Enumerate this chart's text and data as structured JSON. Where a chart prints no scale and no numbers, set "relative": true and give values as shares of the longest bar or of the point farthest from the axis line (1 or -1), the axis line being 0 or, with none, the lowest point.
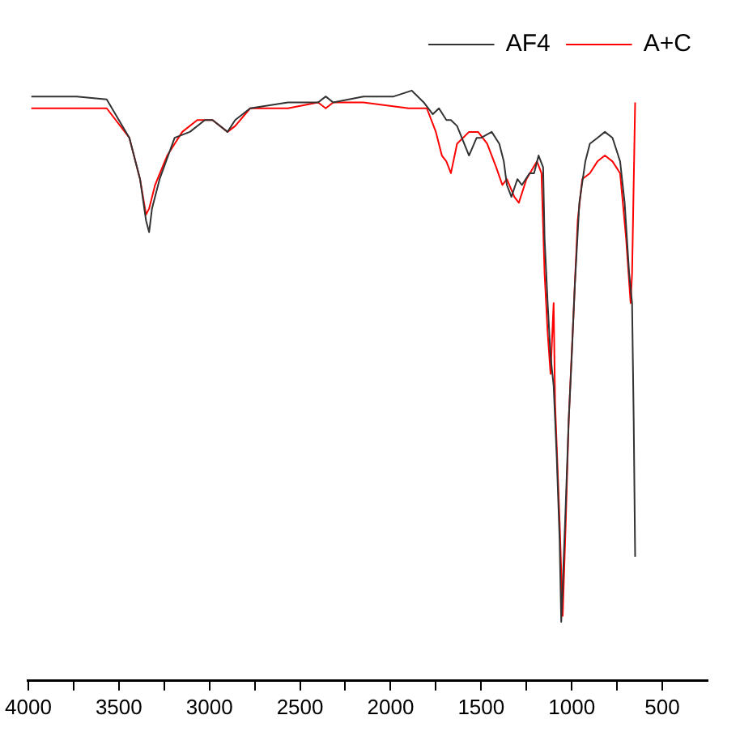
{
  "chart_data": {
    "type": "line",
    "relative": true,
    "legend": "top right",
    "grid": false,
    "marker": "none",
    "line_style": "solid",
    "xlim": [
      4000,
      250
    ],
    "xticks": [
      4000,
      {
        "value": 3750,
        "label": null
      },
      3500,
      {
        "value": 3250,
        "label": null
      },
      3000,
      {
        "value": 2750,
        "label": null
      },
      2500,
      {
        "value": 2250,
        "label": null
      },
      2000,
      {
        "value": 1750,
        "label": null
      },
      1500,
      {
        "value": 1250,
        "label": null
      },
      1000,
      {
        "value": 750,
        "label": null
      },
      500
    ],
    "series": [
      {
        "name": "AF4",
        "color": "#333333",
        "x": [
          3983,
          3733,
          3567,
          3442,
          3383,
          3350,
          3333,
          3317,
          3275,
          3192,
          3108,
          3025,
          2983,
          2900,
          2858,
          2775,
          2567,
          2400,
          2358,
          2317,
          2150,
          1983,
          1883,
          1817,
          1767,
          1733,
          1692,
          1667,
          1633,
          1567,
          1525,
          1500,
          1442,
          1400,
          1375,
          1358,
          1333,
          1300,
          1275,
          1233,
          1208,
          1183,
          1158,
          1150,
          1133,
          1117,
          1100,
          1083,
          1067,
          1058,
          1050,
          1033,
          1017,
          1000,
          983,
          958,
          925,
          900,
          858,
          817,
          775,
          733,
          708,
          683,
          667,
          658,
          650
        ],
        "values": [
          0.99,
          0.99,
          0.985,
          0.92,
          0.85,
          0.78,
          0.76,
          0.8,
          0.85,
          0.92,
          0.93,
          0.95,
          0.95,
          0.93,
          0.95,
          0.97,
          0.98,
          0.98,
          0.99,
          0.98,
          0.99,
          0.99,
          1.0,
          0.98,
          0.96,
          0.97,
          0.95,
          0.95,
          0.94,
          0.89,
          0.92,
          0.92,
          0.93,
          0.91,
          0.88,
          0.84,
          0.82,
          0.85,
          0.84,
          0.86,
          0.86,
          0.89,
          0.87,
          0.75,
          0.64,
          0.55,
          0.5,
          0.38,
          0.24,
          0.1,
          0.16,
          0.3,
          0.44,
          0.55,
          0.67,
          0.81,
          0.88,
          0.91,
          0.92,
          0.93,
          0.92,
          0.88,
          0.81,
          0.69,
          0.64,
          0.44,
          0.21
        ]
      },
      {
        "name": "A+C",
        "color": "#ff0000",
        "x": [
          3983,
          3733,
          3567,
          3442,
          3383,
          3350,
          3333,
          3300,
          3233,
          3150,
          3067,
          2983,
          2900,
          2858,
          2775,
          2567,
          2400,
          2358,
          2317,
          2150,
          1900,
          1800,
          1750,
          1717,
          1692,
          1667,
          1633,
          1567,
          1517,
          1467,
          1417,
          1383,
          1358,
          1317,
          1292,
          1250,
          1192,
          1167,
          1150,
          1133,
          1117,
          1100,
          1092,
          1067,
          1050,
          1033,
          1017,
          992,
          967,
          942,
          900,
          858,
          817,
          775,
          733,
          700,
          675,
          667,
          650
        ],
        "values": [
          0.97,
          0.97,
          0.97,
          0.92,
          0.85,
          0.79,
          0.8,
          0.84,
          0.89,
          0.93,
          0.95,
          0.95,
          0.93,
          0.94,
          0.97,
          0.97,
          0.98,
          0.97,
          0.98,
          0.98,
          0.97,
          0.97,
          0.93,
          0.89,
          0.88,
          0.86,
          0.91,
          0.93,
          0.93,
          0.91,
          0.87,
          0.84,
          0.85,
          0.82,
          0.81,
          0.85,
          0.88,
          0.86,
          0.69,
          0.59,
          0.52,
          0.64,
          0.47,
          0.27,
          0.11,
          0.27,
          0.44,
          0.61,
          0.78,
          0.85,
          0.86,
          0.88,
          0.89,
          0.88,
          0.86,
          0.75,
          0.64,
          0.69,
          0.98
        ]
      }
    ]
  }
}
